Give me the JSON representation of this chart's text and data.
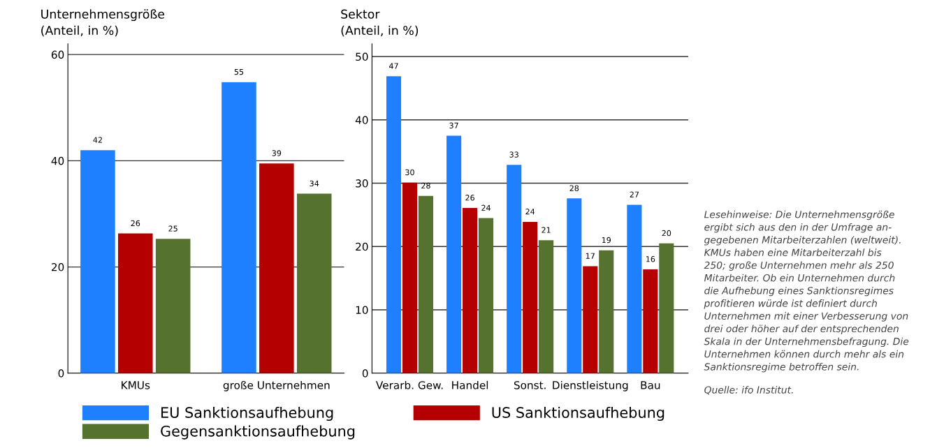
{
  "chart_data": [
    {
      "type": "bar",
      "title": "Unternehmensgröße\n(Anteil, in %)",
      "categories": [
        "KMUs",
        "große Unternehmen"
      ],
      "series": [
        {
          "name": "EU Sanktionsaufhebung",
          "color": "#1e7fff",
          "values": [
            42.0,
            54.8
          ],
          "value_labels": [
            "42",
            "55"
          ]
        },
        {
          "name": "US Sanktionsaufhebung",
          "color": "#b50000",
          "values": [
            26.3,
            39.5
          ],
          "value_labels": [
            "26",
            "39"
          ]
        },
        {
          "name": "Gegensanktionsaufhebung",
          "color": "#56722f",
          "values": [
            25.3,
            33.8
          ],
          "value_labels": [
            "25",
            "34"
          ]
        }
      ],
      "ylim": [
        0,
        62
      ],
      "yticks": [
        0,
        20,
        40,
        60
      ],
      "grid": "y",
      "legend": "bottom"
    },
    {
      "type": "bar",
      "title": "Sektor\n(Anteil, in %)",
      "categories": [
        "Verarb. Gew.",
        "Handel",
        "Sonst.",
        "Dienstleistung",
        "Bau"
      ],
      "series": [
        {
          "color": "#1e7fff",
          "values": [
            46.9,
            37.5,
            32.9,
            27.6,
            26.6
          ],
          "value_labels": [
            "47",
            "37",
            "33",
            "28",
            "27"
          ]
        },
        {
          "color": "#b50000",
          "values": [
            30.1,
            26.1,
            23.9,
            16.9,
            16.4
          ],
          "value_labels": [
            "30",
            "26",
            "24",
            "17",
            "16"
          ]
        },
        {
          "color": "#56722f",
          "values": [
            28.0,
            24.5,
            21.0,
            19.4,
            20.5
          ],
          "value_labels": [
            "28",
            "24",
            "21",
            "19",
            "20"
          ]
        }
      ],
      "ylim": [
        0,
        52
      ],
      "yticks": [
        0,
        10,
        20,
        30,
        40,
        50
      ],
      "grid": "y",
      "annotations": [
        "Lesehinweise: Die Unternehmensgröße\nergibt sich aus den in der Umfrage an-\ngegebenen Mitarbeiterzahlen (weltweit).\nKMUs haben eine Mitarbeiterzahl bis\n250; große Unternehmen mehr als 250\nMitarbeiter. Ob ein Unternehmen durch\ndie Aufhebung eines Sanktionsregimes\nprofitieren würde ist definiert durch\nUnternehmen mit einer Verbesserung von\ndrei oder höher auf der entsprechenden\nSkala in der Unternehmensbefragung. Die\nUnternehmen können durch mehr als ein\nSanktionsregime betroffen sein.",
        "Quelle: ifo Institut."
      ]
    }
  ]
}
